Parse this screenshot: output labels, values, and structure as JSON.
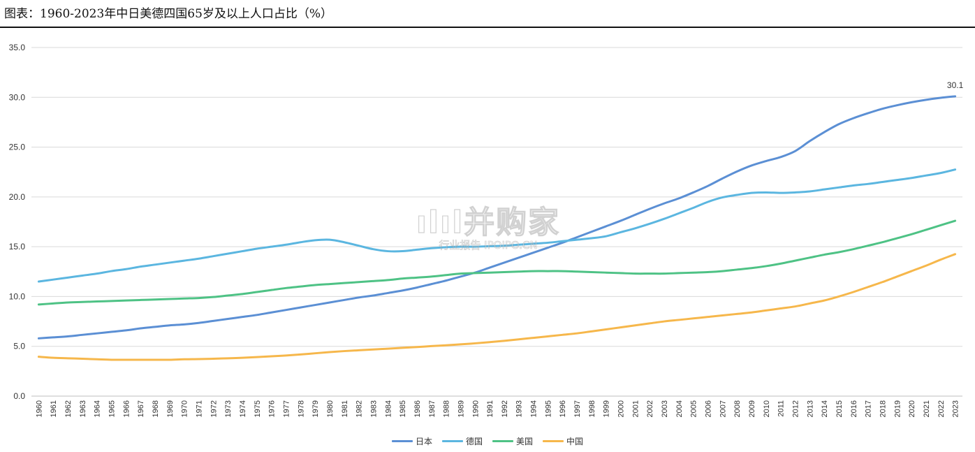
{
  "title": "图表：1960-2023年中日美德四国65岁及以上人口占比（%）",
  "watermark": {
    "brand": "ılıl并购家",
    "sub": "行业报告 IPOIPO.CN"
  },
  "chart_data": {
    "type": "line",
    "title": "",
    "xlabel": "",
    "ylabel": "",
    "ylim": [
      0,
      35
    ],
    "yticks": [
      "0.0",
      "5.0",
      "10.0",
      "15.0",
      "20.0",
      "25.0",
      "30.0",
      "35.0"
    ],
    "grid": true,
    "legend_position": "bottom-center",
    "end_label": "30.1",
    "x": [
      "1960",
      "1961",
      "1962",
      "1963",
      "1964",
      "1965",
      "1966",
      "1967",
      "1968",
      "1969",
      "1970",
      "1971",
      "1972",
      "1973",
      "1974",
      "1975",
      "1976",
      "1977",
      "1978",
      "1979",
      "1980",
      "1981",
      "1982",
      "1983",
      "1984",
      "1985",
      "1986",
      "1987",
      "1988",
      "1989",
      "1990",
      "1991",
      "1992",
      "1993",
      "1994",
      "1995",
      "1996",
      "1997",
      "1998",
      "1999",
      "2000",
      "2001",
      "2002",
      "2003",
      "2004",
      "2005",
      "2006",
      "2007",
      "2008",
      "2009",
      "2010",
      "2011",
      "2012",
      "2013",
      "2014",
      "2015",
      "2016",
      "2017",
      "2018",
      "2019",
      "2020",
      "2021",
      "2022",
      "2023"
    ],
    "series": [
      {
        "name": "日本",
        "color": "#5b8fd4",
        "values": [
          5.8,
          5.9,
          6.0,
          6.15,
          6.3,
          6.45,
          6.6,
          6.8,
          6.95,
          7.1,
          7.2,
          7.35,
          7.55,
          7.75,
          7.95,
          8.15,
          8.4,
          8.65,
          8.9,
          9.15,
          9.4,
          9.65,
          9.9,
          10.1,
          10.35,
          10.6,
          10.9,
          11.25,
          11.6,
          12.0,
          12.4,
          12.9,
          13.4,
          13.9,
          14.4,
          14.9,
          15.4,
          15.95,
          16.5,
          17.05,
          17.6,
          18.2,
          18.8,
          19.35,
          19.85,
          20.45,
          21.1,
          21.85,
          22.55,
          23.15,
          23.6,
          24.0,
          24.6,
          25.6,
          26.5,
          27.3,
          27.9,
          28.4,
          28.85,
          29.2,
          29.5,
          29.75,
          29.95,
          30.1
        ]
      },
      {
        "name": "德国",
        "color": "#5bb6e0",
        "values": [
          11.5,
          11.7,
          11.9,
          12.1,
          12.3,
          12.55,
          12.75,
          13.0,
          13.2,
          13.4,
          13.6,
          13.8,
          14.05,
          14.3,
          14.55,
          14.8,
          15.0,
          15.2,
          15.45,
          15.65,
          15.7,
          15.45,
          15.1,
          14.75,
          14.55,
          14.55,
          14.7,
          14.85,
          14.95,
          15.0,
          15.0,
          15.05,
          15.1,
          15.2,
          15.3,
          15.4,
          15.55,
          15.7,
          15.85,
          16.05,
          16.45,
          16.85,
          17.3,
          17.8,
          18.35,
          18.9,
          19.5,
          19.95,
          20.2,
          20.4,
          20.45,
          20.4,
          20.45,
          20.55,
          20.75,
          20.95,
          21.15,
          21.3,
          21.5,
          21.7,
          21.9,
          22.15,
          22.4,
          22.75
        ]
      },
      {
        "name": "美国",
        "color": "#4ec285",
        "values": [
          9.2,
          9.3,
          9.4,
          9.45,
          9.5,
          9.55,
          9.6,
          9.65,
          9.7,
          9.75,
          9.8,
          9.85,
          9.95,
          10.1,
          10.25,
          10.45,
          10.65,
          10.85,
          11.0,
          11.15,
          11.25,
          11.35,
          11.45,
          11.55,
          11.65,
          11.8,
          11.9,
          12.0,
          12.15,
          12.3,
          12.35,
          12.4,
          12.45,
          12.5,
          12.55,
          12.55,
          12.55,
          12.5,
          12.45,
          12.4,
          12.35,
          12.3,
          12.3,
          12.3,
          12.35,
          12.4,
          12.45,
          12.55,
          12.7,
          12.85,
          13.05,
          13.3,
          13.6,
          13.9,
          14.2,
          14.45,
          14.75,
          15.1,
          15.45,
          15.85,
          16.25,
          16.7,
          17.15,
          17.6
        ]
      },
      {
        "name": "中国",
        "color": "#f6b74b",
        "values": [
          3.95,
          3.85,
          3.8,
          3.75,
          3.7,
          3.65,
          3.65,
          3.65,
          3.65,
          3.65,
          3.7,
          3.72,
          3.75,
          3.8,
          3.85,
          3.92,
          4.0,
          4.08,
          4.18,
          4.3,
          4.42,
          4.52,
          4.6,
          4.68,
          4.76,
          4.85,
          4.93,
          5.02,
          5.1,
          5.2,
          5.3,
          5.42,
          5.55,
          5.7,
          5.85,
          6.0,
          6.15,
          6.3,
          6.5,
          6.7,
          6.9,
          7.1,
          7.3,
          7.5,
          7.65,
          7.8,
          7.95,
          8.1,
          8.25,
          8.4,
          8.6,
          8.8,
          9.0,
          9.3,
          9.6,
          10.0,
          10.45,
          10.95,
          11.45,
          12.0,
          12.55,
          13.1,
          13.7,
          14.25
        ]
      }
    ]
  }
}
